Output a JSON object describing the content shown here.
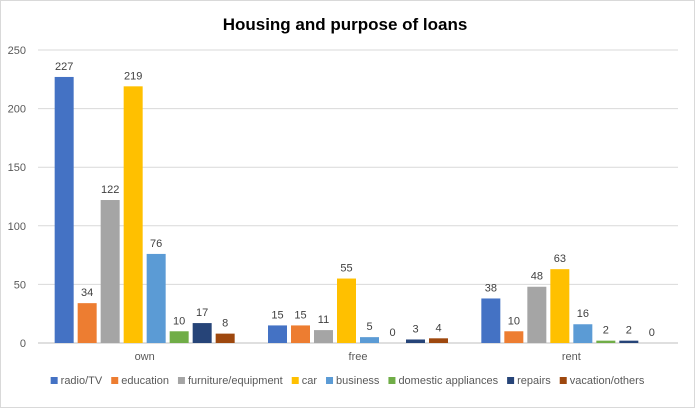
{
  "chart_data": {
    "type": "bar",
    "title": "Housing and purpose of loans",
    "xlabel": "",
    "ylabel": "",
    "ylim": [
      0,
      250
    ],
    "yticks": [
      0,
      50,
      100,
      150,
      200,
      250
    ],
    "grid": true,
    "legend_position": "bottom",
    "categories": [
      "own",
      "free",
      "rent"
    ],
    "series": [
      {
        "name": "radio/TV",
        "color": "#4472C4",
        "values": [
          227,
          15,
          38
        ]
      },
      {
        "name": "education",
        "color": "#ED7D31",
        "values": [
          34,
          15,
          10
        ]
      },
      {
        "name": "furniture/equipment",
        "color": "#A5A5A5",
        "values": [
          122,
          11,
          48
        ]
      },
      {
        "name": "car",
        "color": "#FFC000",
        "values": [
          219,
          55,
          63
        ]
      },
      {
        "name": "business",
        "color": "#5B9BD5",
        "values": [
          76,
          5,
          16
        ]
      },
      {
        "name": "domestic appliances",
        "color": "#70AD47",
        "values": [
          10,
          0,
          2
        ]
      },
      {
        "name": "repairs",
        "color": "#264478",
        "values": [
          17,
          3,
          2
        ]
      },
      {
        "name": "vacation/others",
        "color": "#9E480E",
        "values": [
          8,
          4,
          0
        ]
      }
    ]
  }
}
